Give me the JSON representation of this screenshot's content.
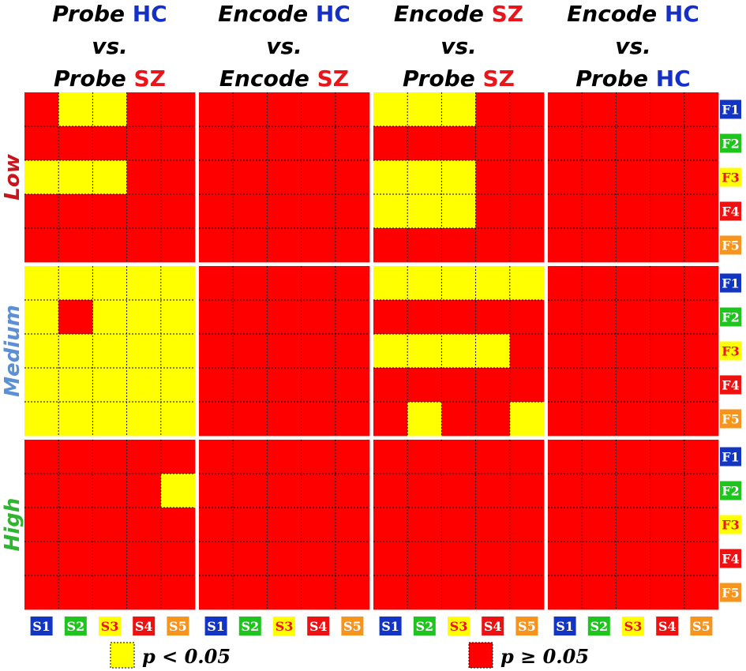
{
  "chart_data": {
    "type": "heatmap",
    "columns": [
      {
        "line1": [
          {
            "text": "Probe",
            "italic": true,
            "color": "#000000"
          },
          {
            "text": " HC",
            "italic": false,
            "color": "#1530c8"
          }
        ],
        "line2": "vs.",
        "line3": [
          {
            "text": "Probe",
            "italic": true,
            "color": "#000000"
          },
          {
            "text": " SZ",
            "italic": false,
            "color": "#e8151b"
          }
        ]
      },
      {
        "line1": [
          {
            "text": "Encode",
            "italic": true,
            "color": "#000000"
          },
          {
            "text": " HC",
            "italic": false,
            "color": "#1530c8"
          }
        ],
        "line2": "vs.",
        "line3": [
          {
            "text": "Encode",
            "italic": true,
            "color": "#000000"
          },
          {
            "text": "  SZ",
            "italic": false,
            "color": "#e8151b"
          }
        ]
      },
      {
        "line1": [
          {
            "text": "Encode",
            "italic": true,
            "color": "#000000"
          },
          {
            "text": " SZ",
            "italic": false,
            "color": "#e8151b"
          }
        ],
        "line2": "vs.",
        "line3": [
          {
            "text": "Probe",
            "italic": true,
            "color": "#000000"
          },
          {
            "text": " SZ",
            "italic": false,
            "color": "#e8151b"
          }
        ]
      },
      {
        "line1": [
          {
            "text": "Encode",
            "italic": true,
            "color": "#000000"
          },
          {
            "text": " HC",
            "italic": false,
            "color": "#1530c8"
          }
        ],
        "line2": "vs.",
        "line3": [
          {
            "text": "Probe",
            "italic": true,
            "color": "#000000"
          },
          {
            "text": " HC",
            "italic": false,
            "color": "#1530c8"
          }
        ]
      }
    ],
    "rows": [
      {
        "label": "Low",
        "color": "#c8141b"
      },
      {
        "label": "Medium",
        "color": "#5b8fd6"
      },
      {
        "label": "High",
        "color": "#2fb52f"
      }
    ],
    "x_tags": [
      "S1",
      "S2",
      "S3",
      "S4",
      "S5"
    ],
    "y_tags": [
      "F1",
      "F2",
      "F3",
      "F4",
      "F5"
    ],
    "tag_styles": [
      {
        "bg": "#1235c4",
        "fg": "#ffffff"
      },
      {
        "bg": "#1fc41f",
        "fg": "#ffffff"
      },
      {
        "bg": "#ffff00",
        "fg": "#e8151b"
      },
      {
        "bg": "#ee1111",
        "fg": "#ffffff"
      },
      {
        "bg": "#f7941d",
        "fg": "#ffffff"
      }
    ],
    "colors": {
      "significant": "#ffff00",
      "not_significant": "#ff0000"
    },
    "panels": [
      [
        [
          [
            1,
            0,
            0,
            1,
            1
          ],
          [
            1,
            1,
            1,
            1,
            1
          ],
          [
            0,
            0,
            0,
            1,
            1
          ],
          [
            1,
            1,
            1,
            1,
            1
          ],
          [
            1,
            1,
            1,
            1,
            1
          ]
        ],
        [
          [
            1,
            1,
            1,
            1,
            1
          ],
          [
            1,
            1,
            1,
            1,
            1
          ],
          [
            1,
            1,
            1,
            1,
            1
          ],
          [
            1,
            1,
            1,
            1,
            1
          ],
          [
            1,
            1,
            1,
            1,
            1
          ]
        ],
        [
          [
            0,
            0,
            0,
            1,
            1
          ],
          [
            1,
            1,
            1,
            1,
            1
          ],
          [
            0,
            0,
            0,
            1,
            1
          ],
          [
            0,
            0,
            0,
            1,
            1
          ],
          [
            1,
            1,
            1,
            1,
            1
          ]
        ],
        [
          [
            1,
            1,
            1,
            1,
            1
          ],
          [
            1,
            1,
            1,
            1,
            1
          ],
          [
            1,
            1,
            1,
            1,
            1
          ],
          [
            1,
            1,
            1,
            1,
            1
          ],
          [
            1,
            1,
            1,
            1,
            1
          ]
        ]
      ],
      [
        [
          [
            0,
            0,
            0,
            0,
            0
          ],
          [
            0,
            1,
            0,
            0,
            0
          ],
          [
            0,
            0,
            0,
            0,
            0
          ],
          [
            0,
            0,
            0,
            0,
            0
          ],
          [
            0,
            0,
            0,
            0,
            0
          ]
        ],
        [
          [
            1,
            1,
            1,
            1,
            1
          ],
          [
            1,
            1,
            1,
            1,
            1
          ],
          [
            1,
            1,
            1,
            1,
            1
          ],
          [
            1,
            1,
            1,
            1,
            1
          ],
          [
            1,
            1,
            1,
            1,
            1
          ]
        ],
        [
          [
            0,
            0,
            0,
            0,
            0
          ],
          [
            1,
            1,
            1,
            1,
            1
          ],
          [
            0,
            0,
            0,
            0,
            1
          ],
          [
            1,
            1,
            1,
            1,
            1
          ],
          [
            1,
            0,
            1,
            1,
            0
          ]
        ],
        [
          [
            1,
            1,
            1,
            1,
            1
          ],
          [
            1,
            1,
            1,
            1,
            1
          ],
          [
            1,
            1,
            1,
            1,
            1
          ],
          [
            1,
            1,
            1,
            1,
            1
          ],
          [
            1,
            1,
            1,
            1,
            1
          ]
        ]
      ],
      [
        [
          [
            1,
            1,
            1,
            1,
            1
          ],
          [
            1,
            1,
            1,
            1,
            0
          ],
          [
            1,
            1,
            1,
            1,
            1
          ],
          [
            1,
            1,
            1,
            1,
            1
          ],
          [
            1,
            1,
            1,
            1,
            1
          ]
        ],
        [
          [
            1,
            1,
            1,
            1,
            1
          ],
          [
            1,
            1,
            1,
            1,
            1
          ],
          [
            1,
            1,
            1,
            1,
            1
          ],
          [
            1,
            1,
            1,
            1,
            1
          ],
          [
            1,
            1,
            1,
            1,
            1
          ]
        ],
        [
          [
            1,
            1,
            1,
            1,
            1
          ],
          [
            1,
            1,
            1,
            1,
            1
          ],
          [
            1,
            1,
            1,
            1,
            1
          ],
          [
            1,
            1,
            1,
            1,
            1
          ],
          [
            1,
            1,
            1,
            1,
            1
          ]
        ],
        [
          [
            1,
            1,
            1,
            1,
            1
          ],
          [
            1,
            1,
            1,
            1,
            1
          ],
          [
            1,
            1,
            1,
            1,
            1
          ],
          [
            1,
            1,
            1,
            1,
            1
          ],
          [
            1,
            1,
            1,
            1,
            1
          ]
        ]
      ]
    ],
    "legend": [
      {
        "text": "p < 0.05",
        "key": "significant"
      },
      {
        "text": "p ≥ 0.05",
        "key": "not_significant"
      }
    ]
  }
}
